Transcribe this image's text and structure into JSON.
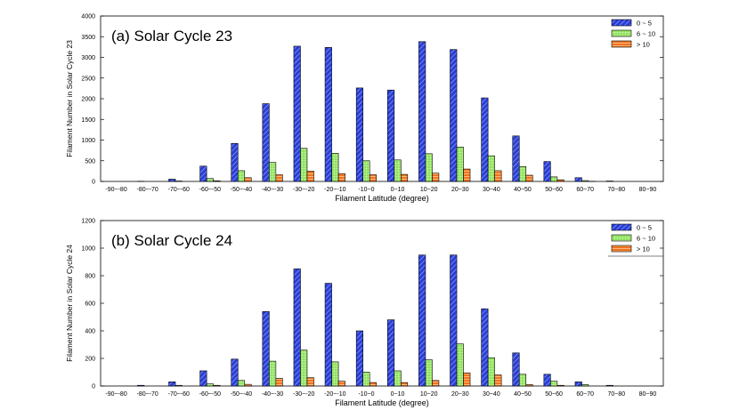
{
  "chart_data": [
    {
      "type": "bar",
      "title": "(a) Solar Cycle 23",
      "xlabel": "Filament Latitude (degree)",
      "ylabel": "Filament Number in Solar Cycle 23",
      "ylim": [
        0,
        4000
      ],
      "yticks": [
        "0",
        "500",
        "1000",
        "1500",
        "2000",
        "2500",
        "3000",
        "3500",
        "4000"
      ],
      "legend_position": "top-right",
      "categories": [
        "-90~-80",
        "-80~-70",
        "-70~-60",
        "-60~-50",
        "-50~-40",
        "-40~-30",
        "-30~-20",
        "-20~-10",
        "-10~0",
        "0~10",
        "10~20",
        "20~30",
        "30~40",
        "40~50",
        "50~60",
        "60~70",
        "70~80",
        "80~90"
      ],
      "series": [
        {
          "name": "0 ~ 5",
          "color": "#2a3fd6",
          "values": [
            0,
            5,
            55,
            370,
            920,
            1880,
            3270,
            3240,
            2260,
            2210,
            3380,
            3190,
            2020,
            1100,
            480,
            90,
            10,
            0
          ]
        },
        {
          "name": "6 ~ 10",
          "color": "#8de05a",
          "values": [
            0,
            0,
            10,
            70,
            260,
            460,
            800,
            680,
            500,
            520,
            670,
            830,
            620,
            360,
            110,
            20,
            0,
            0
          ]
        },
        {
          "name": "> 10",
          "color": "#f07420",
          "values": [
            0,
            0,
            0,
            15,
            90,
            160,
            250,
            190,
            160,
            170,
            200,
            300,
            260,
            150,
            40,
            5,
            0,
            0
          ]
        }
      ]
    },
    {
      "type": "bar",
      "title": "(b) Solar Cycle 24",
      "xlabel": "Filament Latitude (degree)",
      "ylabel": "Filament Number in Solar Cycle 24",
      "ylim": [
        0,
        1200
      ],
      "yticks": [
        "0",
        "200",
        "400",
        "600",
        "800",
        "1000",
        "1200"
      ],
      "legend_position": "top-right",
      "categories": [
        "-90~-80",
        "-80~-70",
        "-70~-60",
        "-60~-50",
        "-50~-40",
        "-40~-30",
        "-30~-20",
        "-20~-10",
        "-10~0",
        "0~10",
        "10~20",
        "20~30",
        "30~40",
        "40~50",
        "50~60",
        "60~70",
        "70~80",
        "80~90"
      ],
      "series": [
        {
          "name": "0 ~ 5",
          "color": "#2a3fd6",
          "values": [
            0,
            5,
            30,
            110,
            195,
            540,
            850,
            745,
            400,
            480,
            950,
            950,
            560,
            240,
            85,
            30,
            5,
            0
          ]
        },
        {
          "name": "6 ~ 10",
          "color": "#8de05a",
          "values": [
            0,
            0,
            5,
            15,
            40,
            180,
            260,
            175,
            100,
            110,
            190,
            305,
            205,
            85,
            35,
            10,
            0,
            0
          ]
        },
        {
          "name": "> 10",
          "color": "#f07420",
          "values": [
            0,
            0,
            0,
            5,
            12,
            55,
            60,
            35,
            25,
            25,
            40,
            95,
            80,
            10,
            5,
            0,
            0,
            0
          ]
        }
      ]
    }
  ]
}
